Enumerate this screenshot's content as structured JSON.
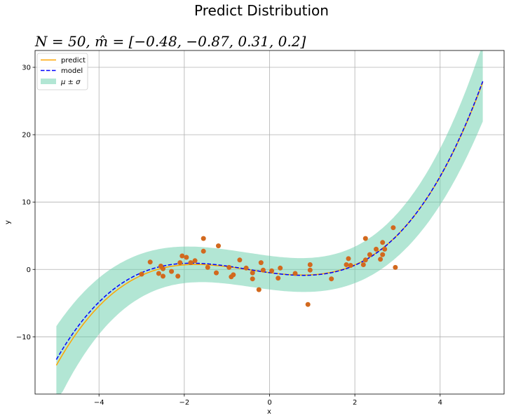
{
  "chart_data": {
    "type": "line",
    "suptitle": "Predict Distribution",
    "title": "N = 50, m̂ = [−0.48, −0.87, 0.31, 0.2]",
    "xlabel": "x",
    "ylabel": "y",
    "xlim": [
      -5.5,
      5.5
    ],
    "ylim": [
      -18.5,
      32.5
    ],
    "xticks": [
      -4,
      -2,
      0,
      2,
      4
    ],
    "yticks": [
      -10,
      0,
      10,
      20,
      30
    ],
    "xtick_labels": [
      "−4",
      "−2",
      "0",
      "2",
      "4"
    ],
    "ytick_labels": [
      "−10",
      "0",
      "10",
      "20",
      "30"
    ],
    "grid": true,
    "legend_position": "top-left",
    "legend": [
      {
        "label": "predict",
        "style": "solid",
        "color": "#ffa500"
      },
      {
        "label": "model",
        "style": "dashed",
        "color": "#0000ff"
      },
      {
        "label": "μ ± σ",
        "style": "band",
        "color": "#66cdaa"
      }
    ],
    "x_range": [
      -5,
      5
    ],
    "model_coefficients": [
      -0.48,
      -0.87,
      0.31,
      0.2
    ],
    "predict_coefficients": [
      -0.48,
      -0.8,
      0.29,
      0.2
    ],
    "band_sigma": 2.5,
    "band_sigma_edge_extra": 3.3,
    "scatter": [
      [
        -3.0,
        -0.7
      ],
      [
        -2.8,
        1.1
      ],
      [
        -2.6,
        -0.6
      ],
      [
        -2.55,
        0.5
      ],
      [
        -2.5,
        -1.0
      ],
      [
        -2.5,
        0.1
      ],
      [
        -2.3,
        -0.3
      ],
      [
        -2.15,
        -1.0
      ],
      [
        -2.1,
        1.0
      ],
      [
        -2.05,
        2.0
      ],
      [
        -1.95,
        1.8
      ],
      [
        -1.85,
        1.0
      ],
      [
        -1.75,
        1.3
      ],
      [
        -1.55,
        2.7
      ],
      [
        -1.55,
        4.6
      ],
      [
        -1.45,
        0.3
      ],
      [
        -1.25,
        -0.5
      ],
      [
        -1.2,
        3.5
      ],
      [
        -0.95,
        0.3
      ],
      [
        -0.9,
        -1.1
      ],
      [
        -0.85,
        -0.8
      ],
      [
        -0.7,
        1.4
      ],
      [
        -0.55,
        0.2
      ],
      [
        -0.4,
        -1.4
      ],
      [
        -0.4,
        -0.5
      ],
      [
        -0.25,
        -3.0
      ],
      [
        -0.2,
        1.0
      ],
      [
        -0.15,
        -0.1
      ],
      [
        0.05,
        -0.2
      ],
      [
        0.2,
        -1.3
      ],
      [
        0.25,
        0.2
      ],
      [
        0.9,
        -5.2
      ],
      [
        0.95,
        -0.1
      ],
      [
        0.95,
        0.7
      ],
      [
        1.45,
        -1.4
      ],
      [
        1.8,
        0.7
      ],
      [
        1.85,
        1.6
      ],
      [
        1.9,
        0.6
      ],
      [
        2.2,
        0.7
      ],
      [
        2.25,
        4.6
      ],
      [
        2.25,
        1.4
      ],
      [
        2.35,
        2.2
      ],
      [
        2.5,
        3.0
      ],
      [
        2.65,
        2.2
      ],
      [
        2.65,
        4.0
      ],
      [
        2.7,
        3.0
      ],
      [
        2.9,
        6.2
      ],
      [
        2.95,
        0.3
      ],
      [
        2.6,
        1.5
      ],
      [
        0.6,
        -0.6
      ]
    ],
    "scatter_color": "#d2691e"
  }
}
